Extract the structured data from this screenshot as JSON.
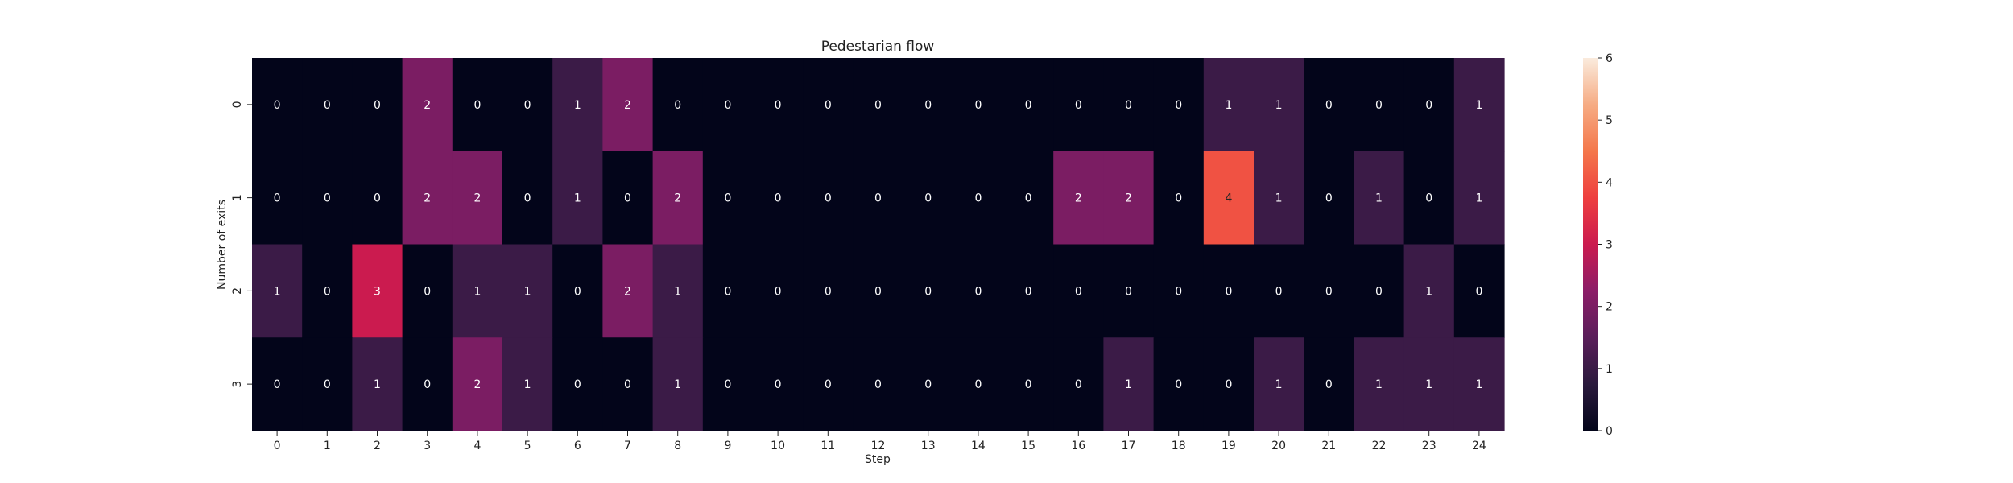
{
  "chart_data": {
    "type": "heatmap",
    "title": "Pedestarian flow",
    "xlabel": "Step",
    "ylabel": "Number of exits",
    "x_categories": [
      "0",
      "1",
      "2",
      "3",
      "4",
      "5",
      "6",
      "7",
      "8",
      "9",
      "10",
      "11",
      "12",
      "13",
      "14",
      "15",
      "16",
      "17",
      "18",
      "19",
      "20",
      "21",
      "22",
      "23",
      "24"
    ],
    "y_categories": [
      "0",
      "1",
      "2",
      "3"
    ],
    "values": [
      [
        0,
        0,
        0,
        2,
        0,
        0,
        1,
        2,
        0,
        0,
        0,
        0,
        0,
        0,
        0,
        0,
        0,
        0,
        0,
        1,
        1,
        0,
        0,
        0,
        1
      ],
      [
        0,
        0,
        0,
        2,
        2,
        0,
        1,
        0,
        2,
        0,
        0,
        0,
        0,
        0,
        0,
        0,
        2,
        2,
        0,
        4,
        1,
        0,
        1,
        0,
        1
      ],
      [
        1,
        0,
        3,
        0,
        1,
        1,
        0,
        2,
        1,
        0,
        0,
        0,
        0,
        0,
        0,
        0,
        0,
        0,
        0,
        0,
        0,
        0,
        0,
        1,
        0
      ],
      [
        0,
        0,
        1,
        0,
        2,
        1,
        0,
        0,
        1,
        0,
        0,
        0,
        0,
        0,
        0,
        0,
        0,
        1,
        0,
        0,
        1,
        0,
        1,
        1,
        1
      ]
    ],
    "colorbar": {
      "min": 0,
      "max": 6,
      "ticks": [
        0,
        1,
        2,
        3,
        4,
        5,
        6
      ]
    },
    "colormap": "rocket",
    "annotations": true,
    "grid": false
  }
}
